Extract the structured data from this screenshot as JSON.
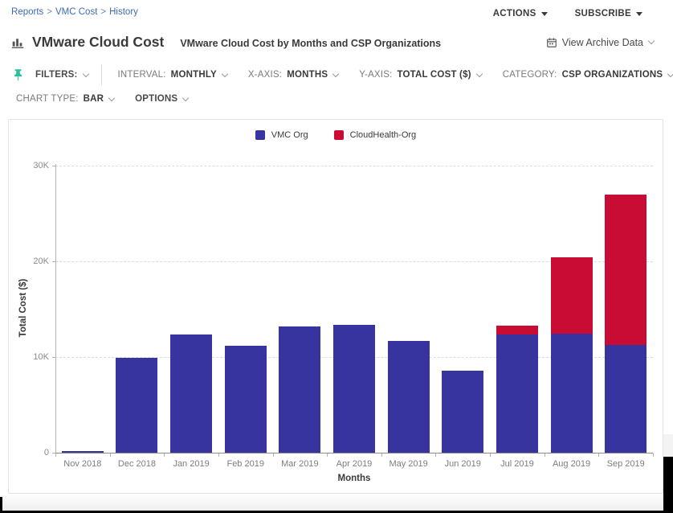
{
  "breadcrumb": {
    "items": [
      "Reports",
      "VMC Cost",
      "History"
    ],
    "separator": ">"
  },
  "topbar": {
    "actions_label": "ACTIONS",
    "subscribe_label": "SUBSCRIBE"
  },
  "header": {
    "title": "VMware Cloud Cost",
    "subtitle": "VMware Cloud Cost by Months and CSP Organizations",
    "view_archive_label": "View Archive Data"
  },
  "toolbar": {
    "filters_label": "FILTERS:",
    "dropdowns": [
      {
        "id": "interval",
        "label": "INTERVAL:",
        "value": "MONTHLY"
      },
      {
        "id": "x-axis",
        "label": "X-AXIS:",
        "value": "MONTHS"
      },
      {
        "id": "y-axis",
        "label": "Y-AXIS:",
        "value": "TOTAL COST ($)"
      },
      {
        "id": "category",
        "label": "CATEGORY:",
        "value": "CSP ORGANIZATIONS"
      }
    ],
    "chart_type": {
      "label": "CHART TYPE:",
      "value": "BAR"
    },
    "options_label": "OPTIONS"
  },
  "chart_data": {
    "type": "bar",
    "stacked": true,
    "title": "VMware Cloud Cost by Months and CSP Organizations",
    "categories": [
      "Nov 2018",
      "Dec 2018",
      "Jan 2019",
      "Feb 2019",
      "Mar 2019",
      "Apr 2019",
      "May 2019",
      "Jun 2019",
      "Jul 2019",
      "Aug 2019",
      "Sep 2019"
    ],
    "series": [
      {
        "name": "VMC Org",
        "color": "#38349f",
        "values": [
          150,
          9900,
          12350,
          11150,
          13200,
          13350,
          11700,
          8550,
          12350,
          12450,
          11300
        ]
      },
      {
        "name": "CloudHealth-Org",
        "color": "#c90c33",
        "values": [
          0,
          0,
          0,
          0,
          0,
          0,
          0,
          0,
          950,
          7950,
          15700
        ]
      }
    ],
    "xlabel": "Months",
    "ylabel": "Total Cost ($)",
    "ylim": [
      0,
      30000
    ],
    "yticks": [
      {
        "value": 0,
        "label": "0"
      },
      {
        "value": 10000,
        "label": "10K"
      },
      {
        "value": 20000,
        "label": "20K"
      },
      {
        "value": 30000,
        "label": "30K"
      }
    ],
    "grid": "horizontal-dashed",
    "legend_position": "top-center"
  },
  "colors": {
    "series_blue": "#38349f",
    "series_red": "#c90c33",
    "link_blue": "#3b6cb4",
    "pin_teal": "#2bbf9f"
  }
}
